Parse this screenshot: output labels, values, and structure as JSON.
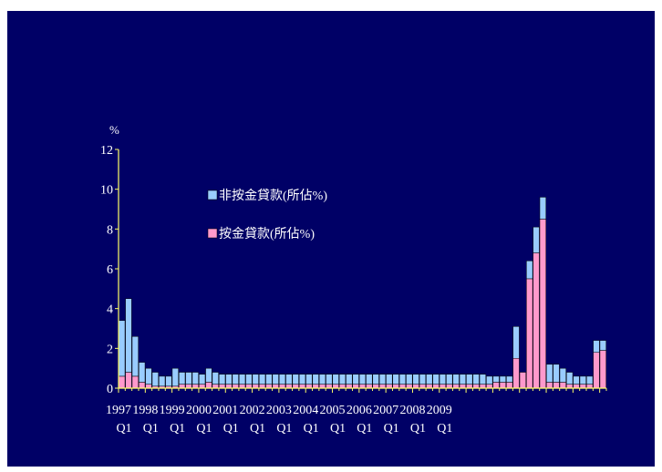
{
  "colors": {
    "background": "#000066",
    "non_mortgage": "#99CCFF",
    "mortgage": "#FF99CC",
    "axis": "#FFFF66",
    "text": "#FFFFFF"
  },
  "chart_data": {
    "type": "bar",
    "stacked": true,
    "ylabel": "%",
    "ylim": [
      0,
      12
    ],
    "yticks": [
      0,
      2,
      4,
      6,
      8,
      10,
      12
    ],
    "legend_position": "upper-left",
    "x_tick_labels": [
      {
        "year": "1997",
        "quarter": "Q1"
      },
      {
        "year": "1998",
        "quarter": "Q1"
      },
      {
        "year": "1999",
        "quarter": "Q1"
      },
      {
        "year": "2000",
        "quarter": "Q1"
      },
      {
        "year": "2001",
        "quarter": "Q1"
      },
      {
        "year": "2002",
        "quarter": "Q1"
      },
      {
        "year": "2003",
        "quarter": "Q1"
      },
      {
        "year": "2004",
        "quarter": "Q1"
      },
      {
        "year": "2005",
        "quarter": "Q1"
      },
      {
        "year": "2006",
        "quarter": "Q1"
      },
      {
        "year": "2007",
        "quarter": "Q1"
      },
      {
        "year": "2008",
        "quarter": "Q1"
      },
      {
        "year": "2009",
        "quarter": "Q1"
      }
    ],
    "series": [
      {
        "name": "按金貸款(所佔%)",
        "color": "#FF99CC",
        "values": [
          0.6,
          0.8,
          0.6,
          0.3,
          0.2,
          0.1,
          0.1,
          0.1,
          0.1,
          0.2,
          0.2,
          0.2,
          0.2,
          0.3,
          0.2,
          0.2,
          0.2,
          0.2,
          0.2,
          0.2,
          0.2,
          0.2,
          0.2,
          0.2,
          0.2,
          0.2,
          0.2,
          0.2,
          0.2,
          0.2,
          0.2,
          0.2,
          0.2,
          0.2,
          0.2,
          0.2,
          0.2,
          0.2,
          0.2,
          0.2,
          0.2,
          0.2,
          0.2,
          0.2,
          0.2,
          0.2,
          0.2,
          0.2,
          0.2,
          0.2,
          0.2,
          0.2,
          0.2,
          0.2,
          0.2,
          0.2,
          0.3,
          0.3,
          0.3,
          1.5,
          0.8,
          5.5,
          6.8,
          8.5,
          0.3,
          0.3,
          0.3,
          0.2,
          0.2,
          0.2,
          0.2,
          1.8,
          1.9
        ]
      },
      {
        "name": "非按金貸款(所佔%)",
        "color": "#99CCFF",
        "values": [
          2.8,
          3.7,
          2.0,
          1.0,
          0.8,
          0.7,
          0.5,
          0.5,
          0.9,
          0.6,
          0.6,
          0.6,
          0.5,
          0.7,
          0.6,
          0.5,
          0.5,
          0.5,
          0.5,
          0.5,
          0.5,
          0.5,
          0.5,
          0.5,
          0.5,
          0.5,
          0.5,
          0.5,
          0.5,
          0.5,
          0.5,
          0.5,
          0.5,
          0.5,
          0.5,
          0.5,
          0.5,
          0.5,
          0.5,
          0.5,
          0.5,
          0.5,
          0.5,
          0.5,
          0.5,
          0.5,
          0.5,
          0.5,
          0.5,
          0.5,
          0.5,
          0.5,
          0.5,
          0.5,
          0.5,
          0.4,
          0.3,
          0.3,
          0.3,
          1.6,
          0.0,
          0.9,
          1.3,
          1.1,
          0.9,
          0.9,
          0.7,
          0.6,
          0.4,
          0.4,
          0.4,
          0.6,
          0.5
        ]
      }
    ]
  }
}
